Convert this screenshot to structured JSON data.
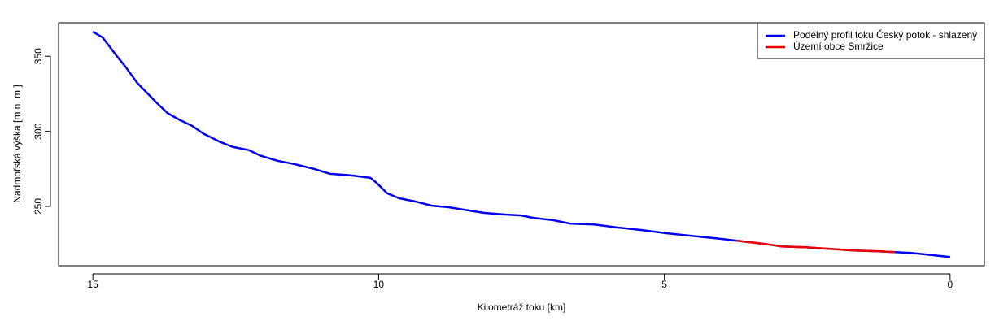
{
  "chart_data": {
    "type": "line",
    "x_label": "Kilometráž toku [km]",
    "y_label": "Nadmořská výška [m n. m.]",
    "xlim": [
      15.6,
      -0.6
    ],
    "ylim": [
      210.5,
      372.3
    ],
    "xticks": [
      15,
      10,
      5,
      0
    ],
    "yticks": [
      250,
      300,
      350
    ],
    "legend": "top-right",
    "series": [
      {
        "name": "Podélný profil toku Český potok - shlazený",
        "color": "#0000ee",
        "x": [
          15.0,
          14.83,
          14.72,
          14.58,
          14.44,
          14.22,
          14.05,
          13.87,
          13.69,
          13.48,
          13.27,
          13.06,
          12.77,
          12.56,
          12.27,
          12.06,
          11.77,
          11.49,
          11.13,
          10.85,
          10.49,
          10.14,
          10.04,
          9.85,
          9.64,
          9.36,
          9.07,
          8.79,
          8.5,
          8.15,
          7.79,
          7.51,
          7.29,
          6.94,
          6.65,
          6.23,
          5.8,
          5.38,
          4.95,
          4.52,
          4.1,
          3.74,
          3.24,
          2.96,
          2.53,
          2.1,
          1.68,
          1.25,
          0.97,
          0.68,
          0.4,
          0
        ],
        "values": [
          366.3,
          362.5,
          357.1,
          350,
          343.5,
          332.1,
          325.5,
          318.5,
          312.0,
          307.6,
          303.8,
          298.4,
          292.9,
          289.7,
          287.5,
          283.7,
          280.4,
          278.3,
          275.0,
          271.7,
          270.7,
          269.0,
          265.8,
          258.7,
          255.4,
          253.3,
          250.5,
          249.5,
          247.8,
          245.7,
          244.6,
          244.0,
          242.4,
          240.8,
          238.6,
          238.0,
          235.9,
          234.2,
          232.1,
          230.4,
          228.8,
          227.2,
          225.0,
          223.4,
          222.8,
          221.7,
          220.7,
          220.1,
          219.6,
          219.0,
          217.9,
          216.3
        ]
      },
      {
        "name": "Území obce Smržice",
        "color": "#ee0000",
        "x": [
          3.74,
          3.24,
          2.96,
          2.53,
          2.1,
          1.68,
          1.25,
          0.97
        ],
        "values": [
          227.2,
          225.0,
          223.4,
          222.8,
          221.7,
          220.7,
          220.1,
          219.6
        ]
      }
    ]
  }
}
